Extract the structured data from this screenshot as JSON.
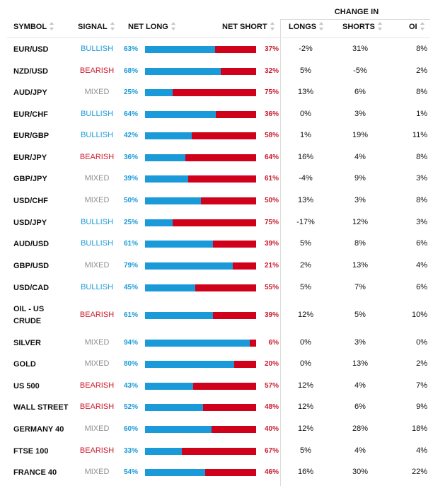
{
  "header": {
    "group_label": "CHANGE IN",
    "symbol": "SYMBOL",
    "signal": "SIGNAL",
    "net_long": "NET LONG",
    "net_short": "NET SHORT",
    "longs": "LONGS",
    "shorts": "SHORTS",
    "oi": "OI"
  },
  "colors": {
    "bullish": "#1a9ad9",
    "bearish": "#cc1b2d",
    "mixed": "#8f8f8f",
    "long_bar": "#1b9ad9",
    "short_bar": "#d0021b"
  },
  "rows": [
    {
      "symbol": "EUR/USD",
      "signal": "BULLISH",
      "net_long": "63%",
      "net_short": "37%",
      "longs": "-2%",
      "shorts": "31%",
      "oi": "8%"
    },
    {
      "symbol": "NZD/USD",
      "signal": "BEARISH",
      "net_long": "68%",
      "net_short": "32%",
      "longs": "5%",
      "shorts": "-5%",
      "oi": "2%"
    },
    {
      "symbol": "AUD/JPY",
      "signal": "MIXED",
      "net_long": "25%",
      "net_short": "75%",
      "longs": "13%",
      "shorts": "6%",
      "oi": "8%"
    },
    {
      "symbol": "EUR/CHF",
      "signal": "BULLISH",
      "net_long": "64%",
      "net_short": "36%",
      "longs": "0%",
      "shorts": "3%",
      "oi": "1%"
    },
    {
      "symbol": "EUR/GBP",
      "signal": "BULLISH",
      "net_long": "42%",
      "net_short": "58%",
      "longs": "1%",
      "shorts": "19%",
      "oi": "11%"
    },
    {
      "symbol": "EUR/JPY",
      "signal": "BEARISH",
      "net_long": "36%",
      "net_short": "64%",
      "longs": "16%",
      "shorts": "4%",
      "oi": "8%"
    },
    {
      "symbol": "GBP/JPY",
      "signal": "MIXED",
      "net_long": "39%",
      "net_short": "61%",
      "longs": "-4%",
      "shorts": "9%",
      "oi": "3%"
    },
    {
      "symbol": "USD/CHF",
      "signal": "MIXED",
      "net_long": "50%",
      "net_short": "50%",
      "longs": "13%",
      "shorts": "3%",
      "oi": "8%"
    },
    {
      "symbol": "USD/JPY",
      "signal": "BULLISH",
      "net_long": "25%",
      "net_short": "75%",
      "longs": "-17%",
      "shorts": "12%",
      "oi": "3%"
    },
    {
      "symbol": "AUD/USD",
      "signal": "BULLISH",
      "net_long": "61%",
      "net_short": "39%",
      "longs": "5%",
      "shorts": "8%",
      "oi": "6%"
    },
    {
      "symbol": "GBP/USD",
      "signal": "MIXED",
      "net_long": "79%",
      "net_short": "21%",
      "longs": "2%",
      "shorts": "13%",
      "oi": "4%"
    },
    {
      "symbol": "USD/CAD",
      "signal": "BULLISH",
      "net_long": "45%",
      "net_short": "55%",
      "longs": "5%",
      "shorts": "7%",
      "oi": "6%"
    },
    {
      "symbol": "OIL - US CRUDE",
      "signal": "BEARISH",
      "net_long": "61%",
      "net_short": "39%",
      "longs": "12%",
      "shorts": "5%",
      "oi": "10%"
    },
    {
      "symbol": "SILVER",
      "signal": "MIXED",
      "net_long": "94%",
      "net_short": "6%",
      "longs": "0%",
      "shorts": "3%",
      "oi": "0%"
    },
    {
      "symbol": "GOLD",
      "signal": "MIXED",
      "net_long": "80%",
      "net_short": "20%",
      "longs": "0%",
      "shorts": "13%",
      "oi": "2%"
    },
    {
      "symbol": "US 500",
      "signal": "BEARISH",
      "net_long": "43%",
      "net_short": "57%",
      "longs": "12%",
      "shorts": "4%",
      "oi": "7%"
    },
    {
      "symbol": "WALL STREET",
      "signal": "BEARISH",
      "net_long": "52%",
      "net_short": "48%",
      "longs": "12%",
      "shorts": "6%",
      "oi": "9%"
    },
    {
      "symbol": "GERMANY 40",
      "signal": "MIXED",
      "net_long": "60%",
      "net_short": "40%",
      "longs": "12%",
      "shorts": "28%",
      "oi": "18%"
    },
    {
      "symbol": "FTSE 100",
      "signal": "BEARISH",
      "net_long": "33%",
      "net_short": "67%",
      "longs": "5%",
      "shorts": "4%",
      "oi": "4%"
    },
    {
      "symbol": "FRANCE 40",
      "signal": "MIXED",
      "net_long": "54%",
      "net_short": "46%",
      "longs": "16%",
      "shorts": "30%",
      "oi": "22%"
    }
  ]
}
